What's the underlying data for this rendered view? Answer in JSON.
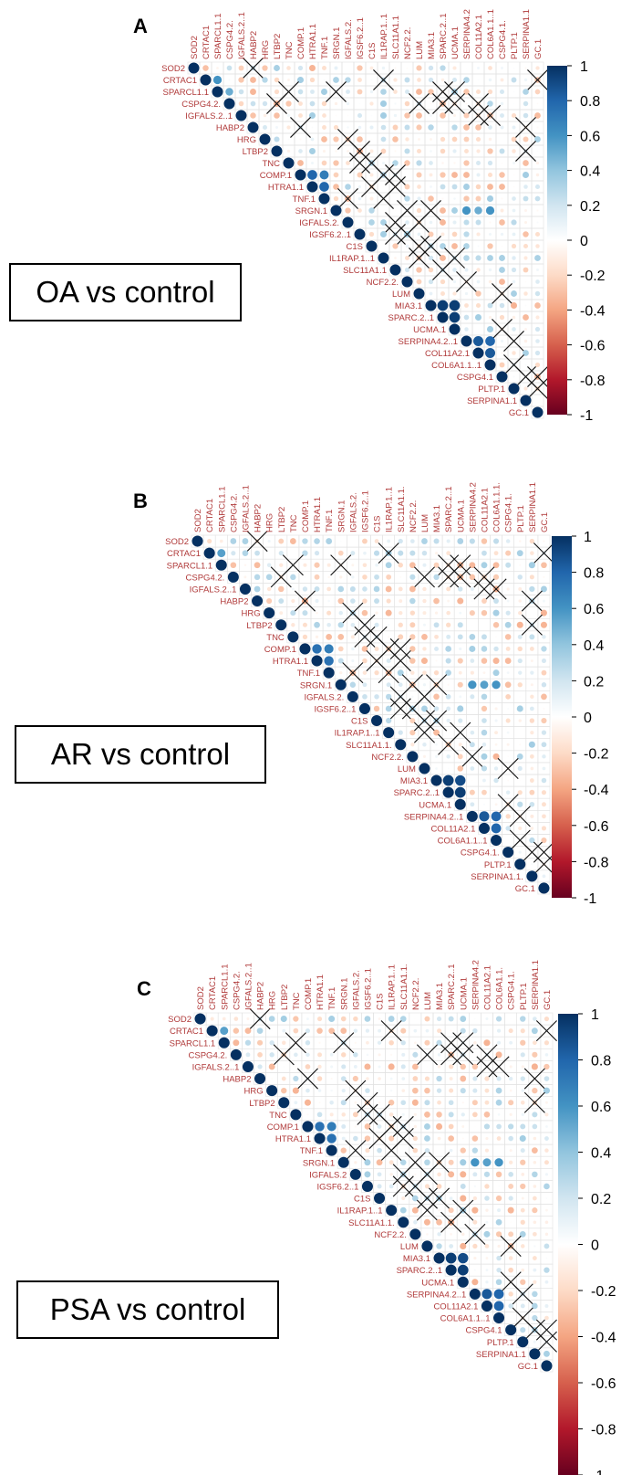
{
  "genes": [
    "SOD2",
    "CRTAC1",
    "SPARCL1.1",
    "CSPG4.2.",
    "IGFALS.2..1",
    "HABP2",
    "HRG",
    "LTBP2",
    "TNC",
    "COMP.1",
    "HTRA1.1",
    "TNF.1",
    "SRGN.1",
    "IGFALS.2.",
    "IGSF6.2..1",
    "C1S",
    "IL1RAP.1..1",
    "SLC11A1.1",
    "NCF2.2.",
    "LUM",
    "MIA3.1",
    "SPARC.2..1",
    "UCMA.1",
    "SERPINA4.2",
    "COL11A2.1",
    "COL6A1.1..1",
    "CSPG4.1.",
    "PLTP.1",
    "SERPINA1.1",
    "GC.1"
  ],
  "colorbar": {
    "ticks": [
      "1",
      "0.8",
      "0.6",
      "0.4",
      "0.2",
      "0",
      "-0.2",
      "-0.4",
      "-0.6",
      "-0.8",
      "-1"
    ],
    "colors": [
      "#67001f",
      "#b2182b",
      "#d6604d",
      "#f4a582",
      "#fddbc7",
      "#ffffff",
      "#d1e5f0",
      "#92c5de",
      "#4393c3",
      "#2166ac",
      "#053061"
    ]
  },
  "chart_data": [
    {
      "type": "heatmap",
      "panel": "A",
      "caption": "OA vs control",
      "row_labels": [
        "SOD2",
        "CRTAC1",
        "SPARCL1.1",
        "CSPG4.2.",
        "IGFALS.2..1",
        "HABP2",
        "HRG",
        "LTBP2",
        "TNC",
        "COMP.1",
        "HTRA1.1",
        "TNF.1",
        "SRGN.1",
        "IGFALS.2.",
        "IGSF6.2..1",
        "C1S",
        "IL1RAP.1..1",
        "SLC11A1.1",
        "NCF2.2.",
        "LUM",
        "MIA3.1",
        "SPARC.2..1",
        "UCMA.1",
        "SERPINA4.2..1",
        "COL11A2.1",
        "COL6A1.1..1",
        "CSPG4.1",
        "PLTP.1",
        "SERPINA1.1",
        "GC.1"
      ],
      "col_labels": [
        "SOD2",
        "CRTAC1",
        "SPARCL1.1",
        "CSPG4.2.",
        "IGFALS.2..1",
        "HABP2",
        "HRG",
        "LTBP2",
        "TNC",
        "COMP.1",
        "HTRA1.1",
        "TNF.1",
        "SRGN.1",
        "IGFALS.2.",
        "IGSF6.2..1",
        "C1S",
        "IL1RAP.1..1",
        "SLC11A1.1",
        "NCF2.2.",
        "LUM",
        "MIA3.1",
        "SPARC.2..1",
        "UCMA.1",
        "SERPINA4.2",
        "COL11A2.1",
        "COL6A1.1..1",
        "CSPG4.1.",
        "PLTP.1",
        "SERPINA1.1",
        "GC.1"
      ],
      "scale_range": [
        -1,
        1
      ],
      "diagonal_value": 1.0,
      "strong_pairs": [
        [
          9,
          10,
          0.8
        ],
        [
          9,
          11,
          0.7
        ],
        [
          10,
          11,
          0.8
        ],
        [
          20,
          21,
          0.95
        ],
        [
          20,
          22,
          0.95
        ],
        [
          21,
          22,
          0.95
        ],
        [
          23,
          24,
          0.85
        ],
        [
          23,
          25,
          0.8
        ],
        [
          24,
          25,
          0.85
        ],
        [
          1,
          2,
          0.6
        ],
        [
          2,
          3,
          0.5
        ],
        [
          12,
          23,
          0.6
        ],
        [
          12,
          24,
          0.5
        ],
        [
          12,
          25,
          0.6
        ]
      ],
      "insignificant_pairs": [
        [
          0,
          5
        ],
        [
          1,
          16
        ],
        [
          2,
          8
        ],
        [
          3,
          7
        ],
        [
          2,
          12
        ],
        [
          3,
          19
        ],
        [
          5,
          9
        ],
        [
          6,
          13
        ],
        [
          7,
          14
        ],
        [
          8,
          15
        ],
        [
          9,
          16
        ],
        [
          9,
          17
        ],
        [
          10,
          17
        ],
        [
          8,
          14
        ],
        [
          11,
          13
        ],
        [
          12,
          18
        ],
        [
          13,
          17
        ],
        [
          14,
          18
        ],
        [
          15,
          20
        ],
        [
          16,
          22
        ],
        [
          17,
          21
        ],
        [
          18,
          23
        ],
        [
          19,
          26
        ],
        [
          5,
          28
        ],
        [
          7,
          28
        ],
        [
          3,
          24
        ],
        [
          4,
          24
        ],
        [
          4,
          25
        ],
        [
          2,
          22
        ],
        [
          3,
          22
        ],
        [
          1,
          29
        ],
        [
          2,
          21
        ],
        [
          3,
          21
        ],
        [
          15,
          19
        ],
        [
          14,
          17
        ],
        [
          13,
          19
        ],
        [
          12,
          20
        ],
        [
          11,
          16
        ],
        [
          10,
          15
        ],
        [
          16,
          19
        ],
        [
          26,
          28
        ],
        [
          25,
          27
        ],
        [
          26,
          29
        ],
        [
          27,
          29
        ],
        [
          23,
          27
        ],
        [
          22,
          26
        ]
      ]
    },
    {
      "type": "heatmap",
      "panel": "B",
      "caption": "AR vs control",
      "row_labels": [
        "SOD2",
        "CRTAC1",
        "SPARCL1.1",
        "CSPG4.2.",
        "IGFALS.2..1",
        "HABP2",
        "HRG",
        "LTBP2",
        "TNC",
        "COMP.1",
        "HTRA1.1",
        "TNF.1",
        "SRGN.1",
        "IGFALS.2.",
        "IGSF6.2..1",
        "C1S",
        "IL1RAP.1..1",
        "SLC11A1.1.",
        "NCF2.2.",
        "LUM",
        "MIA3.1",
        "SPARC.2..1",
        "UCMA.1",
        "SERPINA4.2..1",
        "COL11A2.1",
        "COL6A1.1..1",
        "CSPG4.1.",
        "PLTP.1",
        "SERPINA1.1.",
        "GC.1"
      ],
      "col_labels": [
        "SOD2",
        "CRTAC1",
        "SPARCL1.1",
        "CSPG4.2.",
        "IGFALS.2..1",
        "HABP2",
        "HRG",
        "LTBP2",
        "TNC",
        "COMP.1",
        "HTRA1.1",
        "TNF.1",
        "SRGN.1",
        "IGFALS.2.",
        "IGSF6.2..1",
        "C1S",
        "IL1RAP.1..1",
        "SLC11A1.1.",
        "NCF2.2.",
        "LUM",
        "MIA3.1",
        "SPARC.2..1",
        "UCMA.1",
        "SERPINA4.2",
        "COL11A2.1",
        "COL6A1.1.1.",
        "CSPG4.1.",
        "PLTP.1",
        "SERPINA1.1",
        "GC.1"
      ],
      "scale_range": [
        -1,
        1
      ],
      "diagonal_value": 1.0,
      "strong_pairs": [
        [
          9,
          10,
          0.75
        ],
        [
          9,
          11,
          0.7
        ],
        [
          10,
          11,
          0.75
        ],
        [
          20,
          21,
          0.95
        ],
        [
          20,
          22,
          0.9
        ],
        [
          21,
          22,
          0.95
        ],
        [
          23,
          24,
          0.85
        ],
        [
          23,
          25,
          0.8
        ],
        [
          24,
          25,
          0.8
        ],
        [
          1,
          2,
          0.55
        ],
        [
          12,
          23,
          0.6
        ],
        [
          12,
          24,
          0.55
        ],
        [
          12,
          25,
          0.6
        ]
      ],
      "insignificant_pairs": [
        [
          0,
          5
        ],
        [
          1,
          16
        ],
        [
          2,
          8
        ],
        [
          3,
          7
        ],
        [
          2,
          12
        ],
        [
          3,
          19
        ],
        [
          5,
          9
        ],
        [
          6,
          13
        ],
        [
          7,
          14
        ],
        [
          8,
          15
        ],
        [
          9,
          16
        ],
        [
          9,
          17
        ],
        [
          10,
          17
        ],
        [
          8,
          14
        ],
        [
          11,
          13
        ],
        [
          12,
          18
        ],
        [
          13,
          17
        ],
        [
          14,
          18
        ],
        [
          15,
          20
        ],
        [
          16,
          22
        ],
        [
          17,
          21
        ],
        [
          18,
          23
        ],
        [
          19,
          26
        ],
        [
          5,
          28
        ],
        [
          7,
          28
        ],
        [
          3,
          24
        ],
        [
          4,
          24
        ],
        [
          4,
          25
        ],
        [
          2,
          22
        ],
        [
          3,
          22
        ],
        [
          1,
          29
        ],
        [
          2,
          21
        ],
        [
          3,
          21
        ],
        [
          15,
          19
        ],
        [
          14,
          17
        ],
        [
          13,
          19
        ],
        [
          12,
          20
        ],
        [
          11,
          16
        ],
        [
          10,
          15
        ],
        [
          16,
          19
        ],
        [
          26,
          28
        ],
        [
          25,
          27
        ],
        [
          26,
          29
        ],
        [
          27,
          29
        ],
        [
          23,
          27
        ],
        [
          22,
          26
        ]
      ]
    },
    {
      "type": "heatmap",
      "panel": "C",
      "caption": "PSA vs control",
      "row_labels": [
        "SOD2",
        "CRTAC1",
        "SPARCL1.1",
        "CSPG4.2.",
        "IGFALS.2..1",
        "HABP2",
        "HRG",
        "LTBP2",
        "TNC",
        "COMP.1",
        "HTRA1.1",
        "TNF.1",
        "SRGN.1",
        "IGFALS.2",
        "IGSF6.2..1",
        "C1S",
        "IL1RAP.1..1",
        "SLC11A1.1.",
        "NCF2.2.",
        "LUM",
        "MIA3.1",
        "SPARC.2..1",
        "UCMA.1",
        "SERPINA4.2..1",
        "COL11A2.1",
        "COL6A1.1..1",
        "CSPG4.1",
        "PLTP.1",
        "SERPINA1.1",
        "GC.1"
      ],
      "col_labels": [
        "SOD2",
        "CRTAC1",
        "SPARCL1.1",
        "CSPG4.2.",
        "IGFALS.2..1",
        "HABP2",
        "HRG",
        "LTBP2",
        "TNC",
        "COMP.1",
        "HTRA1.1",
        "TNF.1",
        "SRGN.1",
        "IGFALS.2.",
        "IGSF6.2..1",
        "C1S",
        "IL1RAP.1..1",
        "SLC11A1.1.",
        "NCF2.2.",
        "LUM",
        "MIA3.1",
        "SPARC.2..1",
        "UCMA.1",
        "SERPINA4.2",
        "COL11A2.1",
        "COL6A1.1.",
        "CSPG4.1.",
        "PLTP.1",
        "SERPINA1.1",
        "GC.1"
      ],
      "scale_range": [
        -1,
        1
      ],
      "diagonal_value": 1.0,
      "strong_pairs": [
        [
          9,
          10,
          0.75
        ],
        [
          9,
          11,
          0.7
        ],
        [
          10,
          11,
          0.75
        ],
        [
          20,
          21,
          0.95
        ],
        [
          20,
          22,
          0.9
        ],
        [
          21,
          22,
          0.95
        ],
        [
          23,
          24,
          0.85
        ],
        [
          23,
          25,
          0.8
        ],
        [
          24,
          25,
          0.8
        ],
        [
          1,
          2,
          0.55
        ],
        [
          12,
          23,
          0.6
        ],
        [
          12,
          24,
          0.55
        ],
        [
          12,
          25,
          0.6
        ]
      ],
      "insignificant_pairs": [
        [
          0,
          5
        ],
        [
          1,
          16
        ],
        [
          2,
          8
        ],
        [
          3,
          7
        ],
        [
          2,
          12
        ],
        [
          3,
          19
        ],
        [
          5,
          9
        ],
        [
          6,
          13
        ],
        [
          7,
          14
        ],
        [
          8,
          15
        ],
        [
          9,
          16
        ],
        [
          9,
          17
        ],
        [
          10,
          17
        ],
        [
          8,
          14
        ],
        [
          11,
          13
        ],
        [
          12,
          18
        ],
        [
          13,
          17
        ],
        [
          14,
          18
        ],
        [
          15,
          20
        ],
        [
          16,
          22
        ],
        [
          17,
          21
        ],
        [
          18,
          23
        ],
        [
          19,
          26
        ],
        [
          5,
          28
        ],
        [
          7,
          28
        ],
        [
          3,
          24
        ],
        [
          4,
          24
        ],
        [
          4,
          25
        ],
        [
          2,
          22
        ],
        [
          3,
          22
        ],
        [
          1,
          29
        ],
        [
          2,
          21
        ],
        [
          3,
          21
        ],
        [
          15,
          19
        ],
        [
          14,
          17
        ],
        [
          13,
          19
        ],
        [
          12,
          20
        ],
        [
          11,
          16
        ],
        [
          10,
          15
        ],
        [
          16,
          19
        ],
        [
          26,
          28
        ],
        [
          25,
          27
        ],
        [
          26,
          29
        ],
        [
          27,
          29
        ],
        [
          23,
          27
        ],
        [
          22,
          26
        ]
      ]
    }
  ]
}
